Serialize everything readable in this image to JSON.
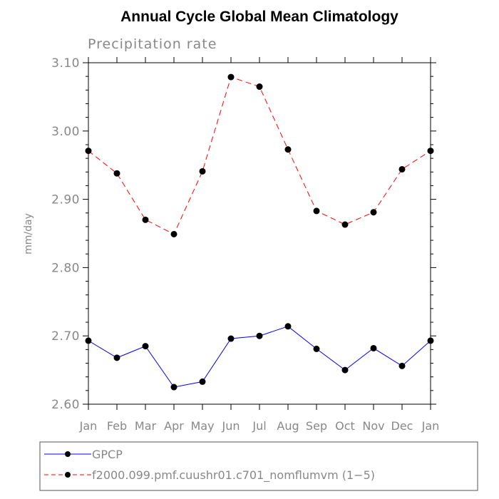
{
  "chart_data": {
    "type": "line",
    "title": "Annual Cycle Global Mean Climatology",
    "subtitle": "Precipitation rate",
    "ylabel": "mm/day",
    "xlabel": "",
    "categories": [
      "Jan",
      "Feb",
      "Mar",
      "Apr",
      "May",
      "Jun",
      "Jul",
      "Aug",
      "Sep",
      "Oct",
      "Nov",
      "Dec",
      "Jan"
    ],
    "ylim": [
      2.6,
      3.1
    ],
    "yticks": [
      2.6,
      2.7,
      2.8,
      2.9,
      3.0,
      3.1
    ],
    "ytick_labels": [
      "2.60",
      "2.70",
      "2.80",
      "2.90",
      "3.00",
      "3.10"
    ],
    "legend_position": "bottom",
    "series": [
      {
        "name": "GPCP",
        "color": "#0000ff",
        "dash": "solid",
        "values": [
          2.693,
          2.668,
          2.685,
          2.625,
          2.633,
          2.696,
          2.7,
          2.714,
          2.681,
          2.65,
          2.682,
          2.656,
          2.693
        ]
      },
      {
        "name": "f2000.099.pmf.cuushr01.c701_nomflumvm (1−5)",
        "color": "#ff0000",
        "dash": "dashed",
        "values": [
          2.971,
          2.938,
          2.87,
          2.849,
          2.941,
          3.079,
          3.065,
          2.973,
          2.883,
          2.863,
          2.881,
          2.944,
          2.971
        ]
      }
    ]
  }
}
